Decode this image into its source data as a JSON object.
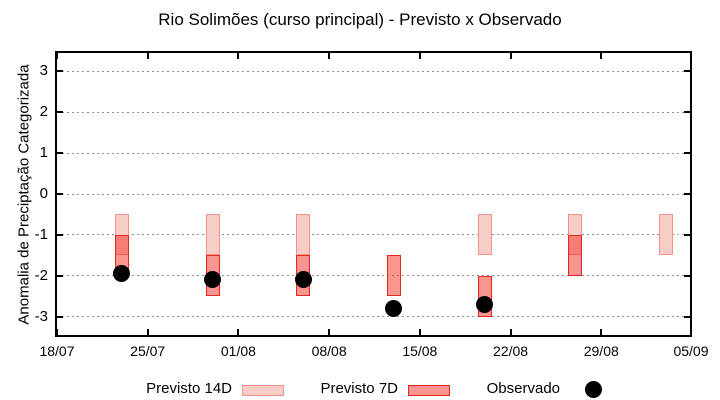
{
  "title": "Rio Solimões (curso principal) - Previsto x Observado",
  "chart_data": {
    "type": "rangebar_scatter",
    "title": "Rio Solimões (curso principal) - Previsto x Observado",
    "xlabel": "",
    "ylabel": "Anomalia de Preciptação Categorizada",
    "x_tick_labels": [
      "18/07",
      "25/07",
      "01/08",
      "08/08",
      "15/08",
      "22/08",
      "29/08",
      "05/09"
    ],
    "x_tick_days": [
      0,
      7,
      14,
      21,
      28,
      35,
      42,
      49
    ],
    "y_ticks": [
      3,
      2,
      1,
      0,
      -1,
      -2,
      -3
    ],
    "ylim": [
      -3.5,
      3.5
    ],
    "grid": "horizontal dotted gray",
    "legend_position": "bottom",
    "series": [
      {
        "name": "Previsto 14D",
        "type": "range_bar",
        "fill": "#f9cdc7",
        "border": "#f0938a",
        "bars": [
          {
            "date": "23/07",
            "day": 5,
            "low": -1.5,
            "high": -0.5
          },
          {
            "date": "30/07",
            "day": 12,
            "low": -1.5,
            "high": -0.5
          },
          {
            "date": "06/08",
            "day": 19,
            "low": -1.5,
            "high": -0.5
          },
          {
            "date": "20/08",
            "day": 33,
            "low": -1.5,
            "high": -0.5
          },
          {
            "date": "27/08",
            "day": 40,
            "low": -1.5,
            "high": -0.5
          },
          {
            "date": "03/09",
            "day": 47,
            "low": -1.5,
            "high": -0.5
          }
        ]
      },
      {
        "name": "Previsto 7D",
        "type": "range_bar",
        "fill": "rgba(246,44,34,0.5)",
        "border": "#e8281e",
        "bars": [
          {
            "date": "23/07",
            "day": 5,
            "low": -1.9,
            "high": -1.0
          },
          {
            "date": "30/07",
            "day": 12,
            "low": -2.5,
            "high": -1.5
          },
          {
            "date": "06/08",
            "day": 19,
            "low": -2.5,
            "high": -1.5
          },
          {
            "date": "13/08",
            "day": 26,
            "low": -2.5,
            "high": -1.5
          },
          {
            "date": "20/08",
            "day": 33,
            "low": -3.0,
            "high": -2.0
          },
          {
            "date": "27/08",
            "day": 40,
            "low": -2.0,
            "high": -1.0
          }
        ]
      },
      {
        "name": "Observado",
        "type": "scatter",
        "color": "#000000",
        "points": [
          {
            "date": "23/07",
            "day": 5,
            "value": -1.95
          },
          {
            "date": "30/07",
            "day": 12,
            "value": -2.1
          },
          {
            "date": "06/08",
            "day": 19,
            "value": -2.1
          },
          {
            "date": "13/08",
            "day": 26,
            "value": -2.8
          },
          {
            "date": "20/08",
            "day": 33,
            "value": -2.7
          }
        ]
      }
    ]
  },
  "legend": {
    "items": [
      {
        "label": "Previsto 14D"
      },
      {
        "label": "Previsto 7D"
      },
      {
        "label": "Observado"
      }
    ]
  },
  "colors": {
    "previsto14_fill": "#f9cdc7",
    "previsto14_border": "#f0938a",
    "previsto7_fill": "rgba(246,44,34,0.5)",
    "previsto7_border": "#e8281e",
    "observado": "#000000",
    "grid": "#909090",
    "frame": "#000000"
  }
}
